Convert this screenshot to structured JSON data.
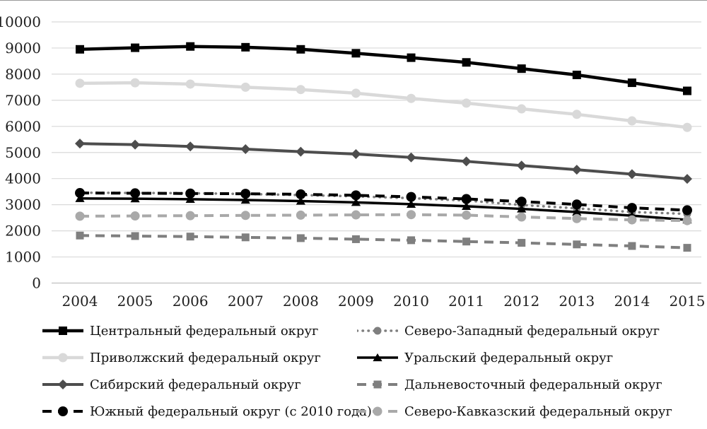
{
  "figure": {
    "background": "#ffffff",
    "gridline_color": "#d9d9d9",
    "axis_line_color": "#bfbfbf",
    "text_color": "#1f1f1f"
  },
  "chart_data": {
    "type": "line",
    "title": "",
    "xlabel": "",
    "ylabel": "",
    "x": [
      2004,
      2005,
      2006,
      2007,
      2008,
      2009,
      2010,
      2011,
      2012,
      2013,
      2014,
      2015
    ],
    "ylim": [
      0,
      10000
    ],
    "y_tick_step": 1000,
    "y_ticks": [
      0,
      1000,
      2000,
      3000,
      4000,
      5000,
      6000,
      7000,
      8000,
      9000,
      10000
    ],
    "grid": true,
    "legend_position": "bottom-two-columns",
    "series": [
      {
        "key": "central",
        "name": "Центральный федеральный округ",
        "color": "#000000",
        "line_style": "solid",
        "line_width": 4.5,
        "marker": "square",
        "marker_size": 6,
        "values": [
          8950,
          9010,
          9060,
          9030,
          8950,
          8800,
          8630,
          8450,
          8210,
          7970,
          7670,
          7360
        ]
      },
      {
        "key": "northwest",
        "name": "Северо-Западный федеральный округ",
        "color": "#7f7f7f",
        "line_style": "dotted",
        "line_width": 3.5,
        "marker": "circle",
        "marker_size": 5.5,
        "values": [
          3460,
          3450,
          3440,
          3410,
          3370,
          3320,
          3250,
          3160,
          2990,
          2860,
          2720,
          2650
        ]
      },
      {
        "key": "volga",
        "name": "Приволжский федеральный округ",
        "color": "#d9d9d9",
        "line_style": "solid",
        "line_width": 4.5,
        "marker": "circle",
        "marker_size": 6.5,
        "values": [
          7650,
          7670,
          7620,
          7500,
          7410,
          7270,
          7070,
          6890,
          6670,
          6460,
          6210,
          5960
        ]
      },
      {
        "key": "ural",
        "name": "Уральский федеральный округ",
        "color": "#000000",
        "line_style": "solid",
        "line_width": 3.5,
        "marker": "triangle",
        "marker_size": 6,
        "values": [
          3240,
          3230,
          3210,
          3180,
          3140,
          3090,
          3020,
          2940,
          2840,
          2720,
          2580,
          2420
        ]
      },
      {
        "key": "siberia",
        "name": "Сибирский федеральный округ",
        "color": "#4d4d4d",
        "line_style": "solid",
        "line_width": 4,
        "marker": "diamond",
        "marker_size": 7,
        "values": [
          5340,
          5300,
          5230,
          5130,
          5030,
          4940,
          4810,
          4660,
          4500,
          4340,
          4170,
          3990
        ]
      },
      {
        "key": "fareast",
        "name": "Дальневосточный федеральный округ",
        "color": "#7f7f7f",
        "line_style": "dashed",
        "line_width": 4,
        "marker": "square",
        "marker_size": 5.5,
        "values": [
          1820,
          1800,
          1780,
          1750,
          1720,
          1680,
          1640,
          1590,
          1540,
          1480,
          1420,
          1350
        ]
      },
      {
        "key": "south",
        "name": "Южный федеральный округ (с 2010 года)",
        "color": "#000000",
        "line_style": "dashed",
        "line_width": 4,
        "marker": "circle",
        "marker_size": 7,
        "values": [
          3450,
          3440,
          3430,
          3420,
          3400,
          3360,
          3300,
          3220,
          3120,
          3010,
          2880,
          2790
        ]
      },
      {
        "key": "caucasus",
        "name": "Северо-Кавказский федеральный округ",
        "color": "#a9a9a9",
        "line_style": "dashed",
        "line_width": 4,
        "marker": "circle",
        "marker_size": 6.5,
        "values": [
          2560,
          2570,
          2580,
          2590,
          2600,
          2610,
          2620,
          2600,
          2530,
          2470,
          2420,
          2390
        ]
      }
    ]
  }
}
